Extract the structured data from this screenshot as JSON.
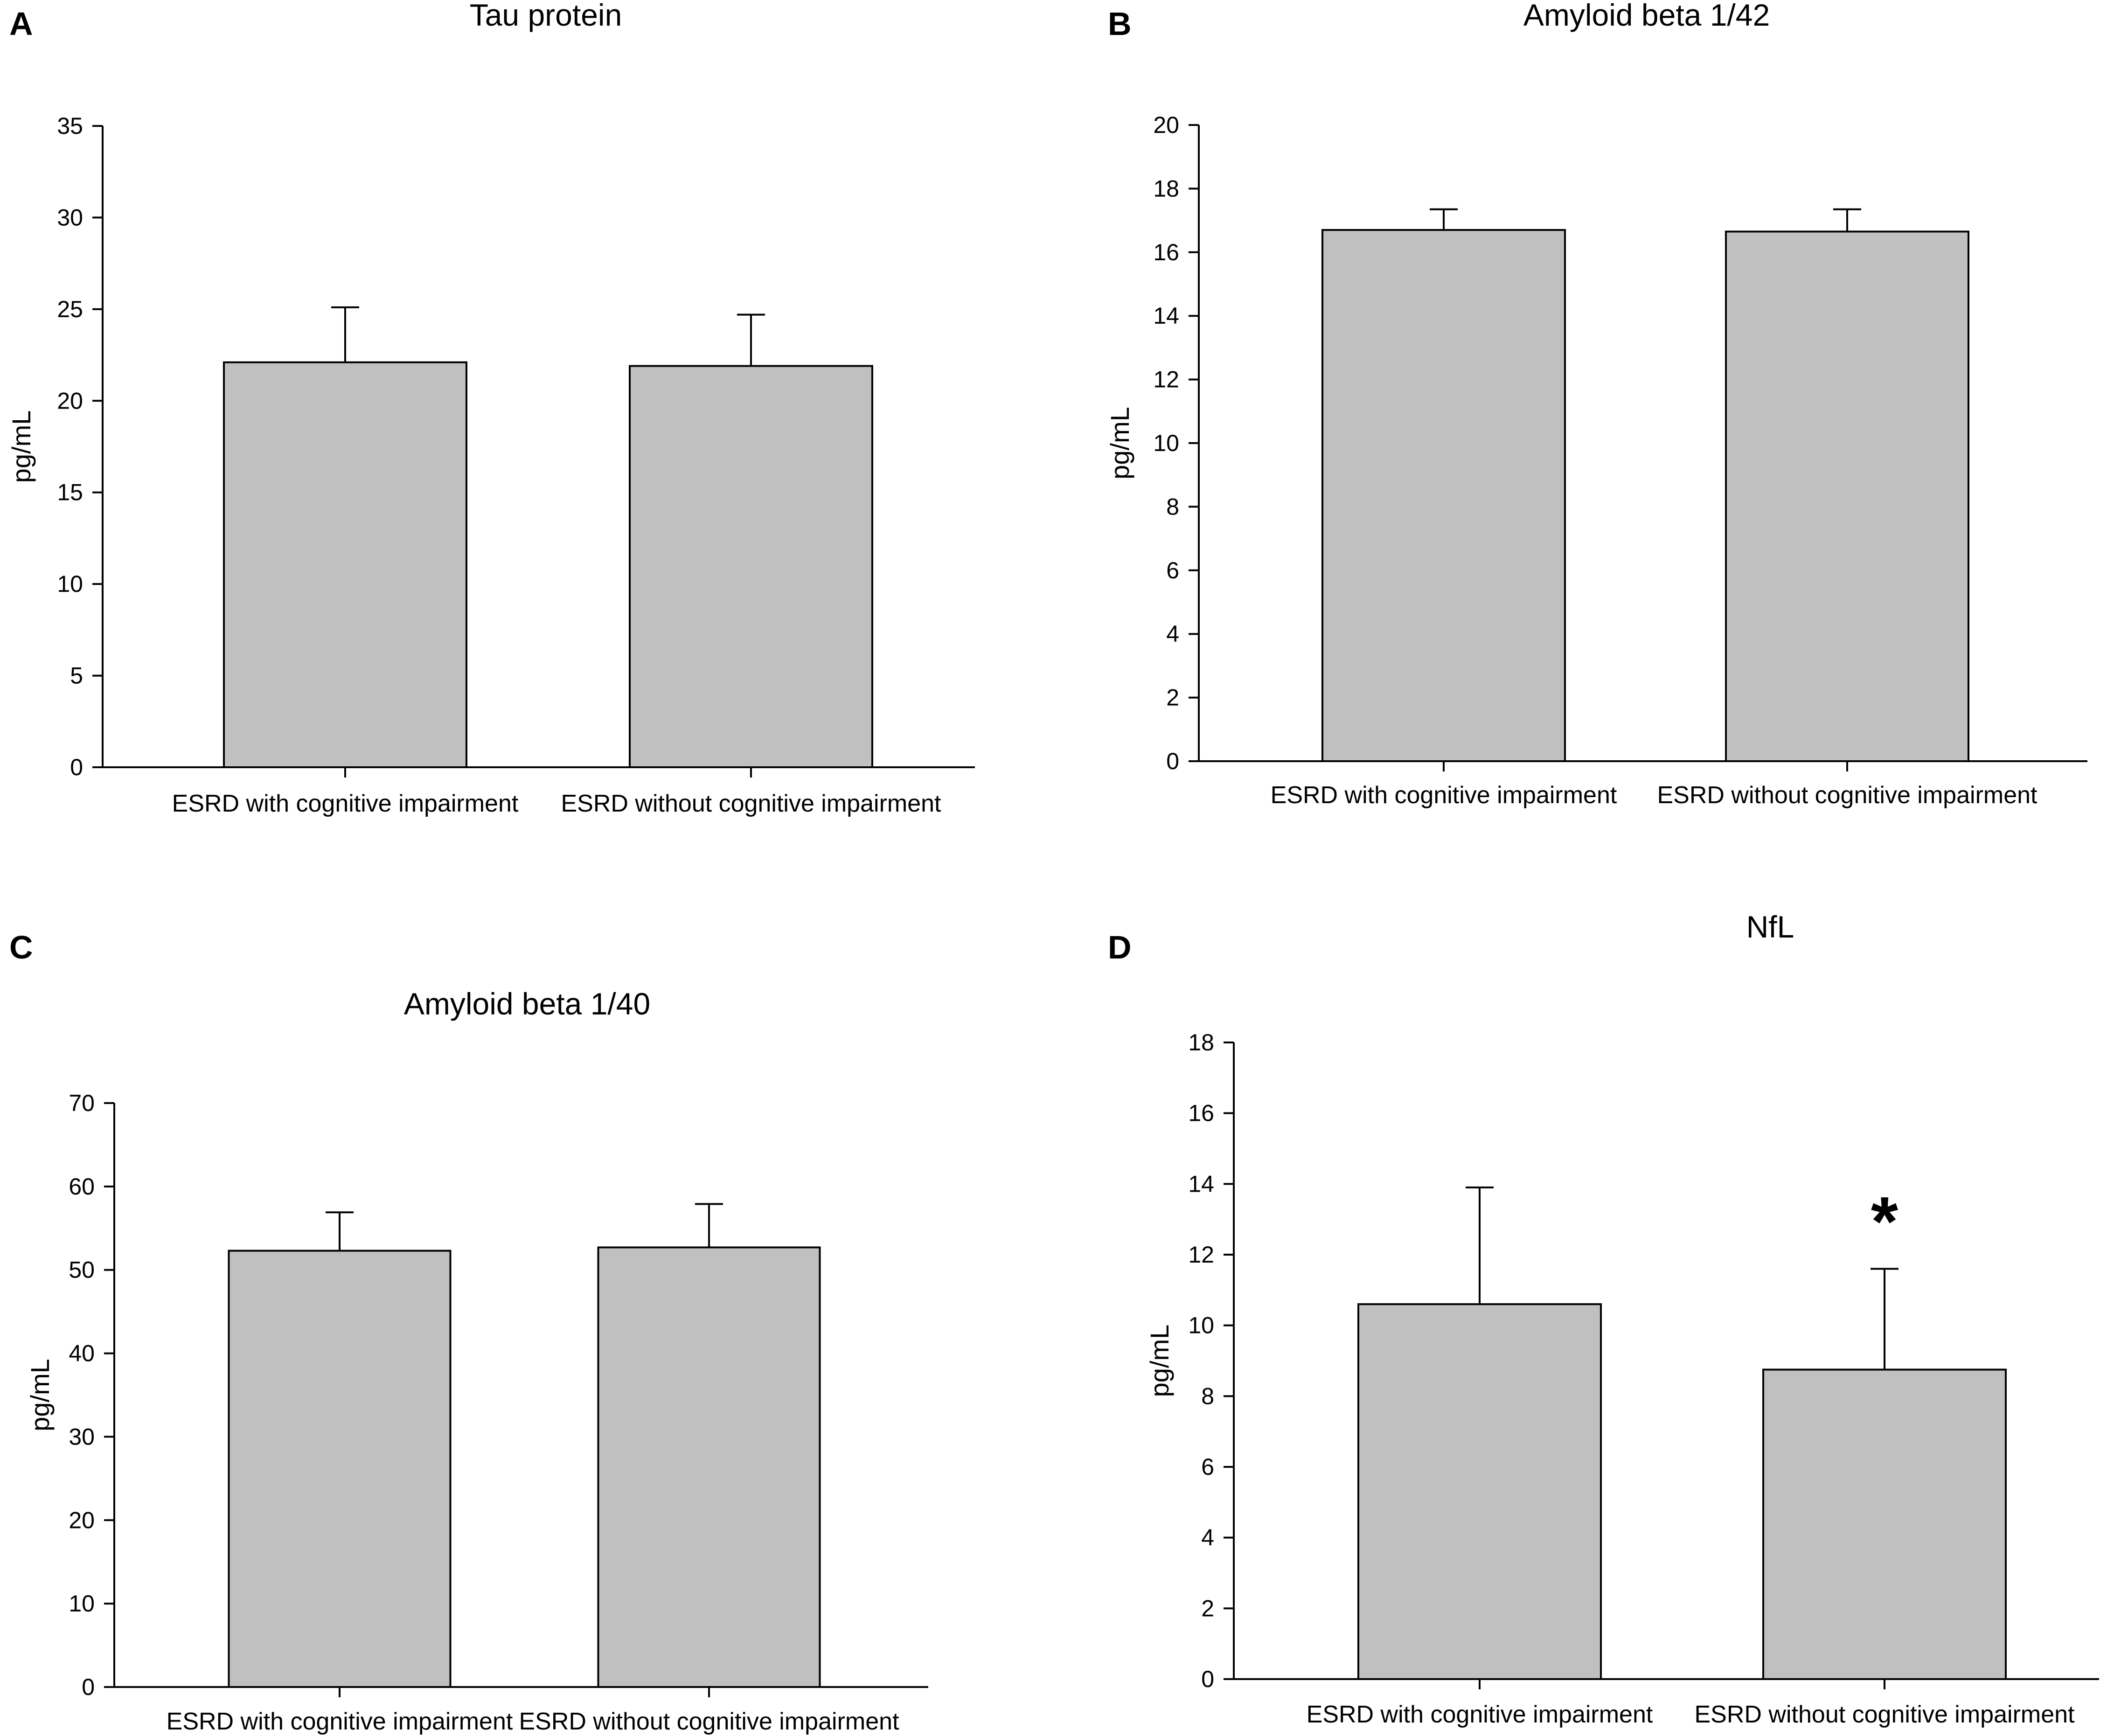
{
  "figure": {
    "colors": {
      "bar_fill": "#c0c0c0",
      "stroke": "#000000",
      "background": "#ffffff"
    }
  },
  "chart_data": [
    {
      "panel": "A",
      "type": "bar",
      "title": "Tau protein",
      "xlabel": "",
      "ylabel": "pg/mL",
      "categories": [
        "ESRD with cognitive impairment",
        "ESRD without cognitive impairment"
      ],
      "values": [
        22.1,
        21.9
      ],
      "error_upper": [
        3.0,
        2.8
      ],
      "ylim": [
        0,
        35
      ],
      "yticks": [
        0,
        5,
        10,
        15,
        20,
        25,
        30,
        35
      ],
      "annotations": []
    },
    {
      "panel": "B",
      "type": "bar",
      "title": "Amyloid beta 1/42",
      "xlabel": "",
      "ylabel": "pg/mL",
      "categories": [
        "ESRD with cognitive impairment",
        "ESRD without cognitive impairment"
      ],
      "values": [
        16.7,
        16.65
      ],
      "error_upper": [
        0.65,
        0.7
      ],
      "ylim": [
        0,
        20
      ],
      "yticks": [
        0,
        2,
        4,
        6,
        8,
        10,
        12,
        14,
        16,
        18,
        20
      ],
      "annotations": []
    },
    {
      "panel": "C",
      "type": "bar",
      "title": "Amyloid beta 1/40",
      "xlabel": "",
      "ylabel": "pg/mL",
      "categories": [
        "ESRD with cognitive impairment",
        "ESRD without cognitive impairment"
      ],
      "values": [
        52.3,
        52.7
      ],
      "error_upper": [
        4.6,
        5.2
      ],
      "ylim": [
        0,
        70
      ],
      "yticks": [
        0,
        10,
        20,
        30,
        40,
        50,
        60,
        70
      ],
      "annotations": []
    },
    {
      "panel": "D",
      "type": "bar",
      "title": "NfL",
      "xlabel": "",
      "ylabel": "pg/mL",
      "categories": [
        "ESRD with cognitive impairment",
        "ESRD without cognitive impairment"
      ],
      "values": [
        10.6,
        8.75
      ],
      "error_upper": [
        3.3,
        2.85
      ],
      "ylim": [
        0,
        18
      ],
      "yticks": [
        0,
        2,
        4,
        6,
        8,
        10,
        12,
        14,
        16,
        18
      ],
      "annotations": [
        {
          "category_index": 1,
          "text": "*"
        }
      ]
    }
  ]
}
